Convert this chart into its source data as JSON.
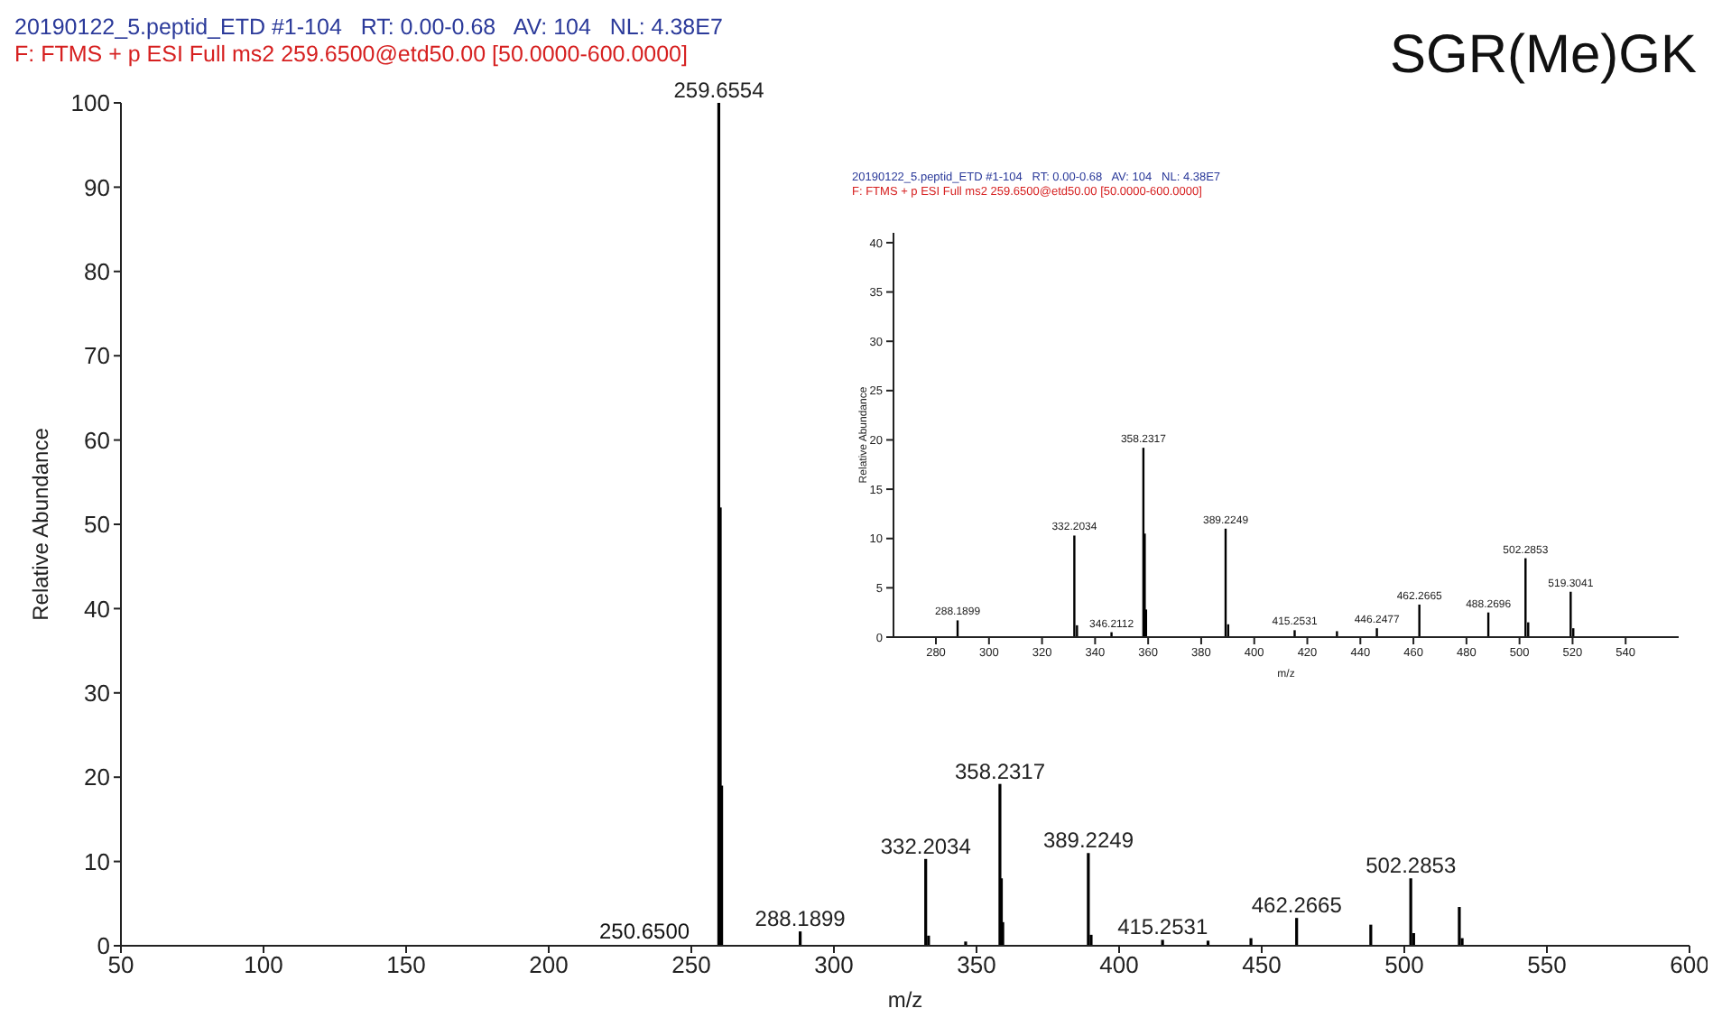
{
  "chart_data": [
    {
      "type": "bar",
      "title": "20190122_5.peptid_ETD #1-104   RT: 0.00-0.68   AV: 104   NL: 4.38E7",
      "subtitle": "F: FTMS + p ESI Full ms2 259.6500@etd50.00 [50.0000-600.0000]",
      "xlabel": "m/z",
      "ylabel": "Relative Abundance",
      "annotations": [
        "SGR(Me)GK",
        "250.6500",
        {
          "text": "259.6554",
          "x": 259.6554,
          "y": 100
        },
        {
          "text": "288.1899",
          "x": 288.1899,
          "y": 1.7
        },
        {
          "text": "332.2034",
          "x": 332.2034,
          "y": 10.3
        },
        {
          "text": "358.2317",
          "x": 358.2317,
          "y": 19.2
        },
        {
          "text": "389.2249",
          "x": 389.2249,
          "y": 11
        },
        {
          "text": "415.2531",
          "x": 415.2531,
          "y": 0.7
        },
        {
          "text": "462.2665",
          "x": 462.2665,
          "y": 3.3
        },
        {
          "text": "502.2853",
          "x": 502.2853,
          "y": 8
        }
      ],
      "x": [
        259.6554,
        260.16,
        260.66,
        288.1899,
        332.2034,
        333.2,
        346.2112,
        358.2317,
        358.73,
        359.23,
        389.2249,
        390.2,
        415.2531,
        431.2,
        446.2477,
        462.2665,
        488.2696,
        502.2853,
        503.3,
        519.3041,
        520.3
      ],
      "series": [
        {
          "color": "#000000",
          "values": [
            100,
            52,
            19,
            1.7,
            10.3,
            1.2,
            0.5,
            19.2,
            8,
            2.8,
            11,
            1.3,
            0.7,
            0.6,
            0.9,
            3.3,
            2.5,
            8,
            1.5,
            4.6,
            0.9
          ]
        }
      ],
      "xlim": [
        50,
        600
      ],
      "xticks": [
        50,
        100,
        150,
        200,
        250,
        300,
        350,
        400,
        450,
        500,
        550,
        600
      ],
      "ylim": [
        0,
        100
      ],
      "yticks": [
        0,
        10,
        20,
        30,
        40,
        50,
        60,
        70,
        80,
        90,
        100
      ],
      "grid": false,
      "legend": false
    },
    {
      "type": "bar",
      "title": "20190122_5.peptid_ETD #1-104   RT: 0.00-0.68   AV: 104   NL: 4.38E7",
      "subtitle": "F: FTMS + p ESI Full ms2 259.6500@etd50.00 [50.0000-600.0000]",
      "xlabel": "m/z",
      "ylabel": "Relative Abundance",
      "annotations": [
        {
          "text": "288.1899",
          "x": 288.1899,
          "y": 1.7
        },
        {
          "text": "332.2034",
          "x": 332.2034,
          "y": 10.3
        },
        {
          "text": "346.2112",
          "x": 346.2112,
          "y": 0.5
        },
        {
          "text": "358.2317",
          "x": 358.2317,
          "y": 19.2
        },
        {
          "text": "389.2249",
          "x": 389.2249,
          "y": 11
        },
        {
          "text": "415.2531",
          "x": 415.2531,
          "y": 0.7
        },
        {
          "text": "446.2477",
          "x": 446.2477,
          "y": 0.9
        },
        {
          "text": "462.2665",
          "x": 462.2665,
          "y": 3.3
        },
        {
          "text": "488.2696",
          "x": 488.2696,
          "y": 2.5
        },
        {
          "text": "502.2853",
          "x": 502.2853,
          "y": 8
        },
        {
          "text": "519.3041",
          "x": 519.3041,
          "y": 4.6
        }
      ],
      "x": [
        288.1899,
        332.2034,
        333.2,
        346.2112,
        358.2317,
        358.73,
        359.23,
        389.2249,
        390.2,
        415.2531,
        431.2,
        446.2477,
        462.2665,
        488.2696,
        502.2853,
        503.3,
        519.3041,
        520.3
      ],
      "series": [
        {
          "color": "#000000",
          "values": [
            1.7,
            10.3,
            1.2,
            0.5,
            19.2,
            10.5,
            2.8,
            11,
            1.3,
            0.7,
            0.6,
            0.9,
            3.3,
            2.5,
            8,
            1.5,
            4.6,
            0.9
          ]
        }
      ],
      "xlim": [
        264,
        560
      ],
      "xticks": [
        280,
        300,
        320,
        340,
        360,
        380,
        400,
        420,
        440,
        460,
        480,
        500,
        520,
        540
      ],
      "ylim": [
        0,
        41
      ],
      "yticks": [
        0,
        5,
        10,
        15,
        20,
        25,
        30,
        35,
        40
      ],
      "grid": false,
      "legend": false
    }
  ]
}
